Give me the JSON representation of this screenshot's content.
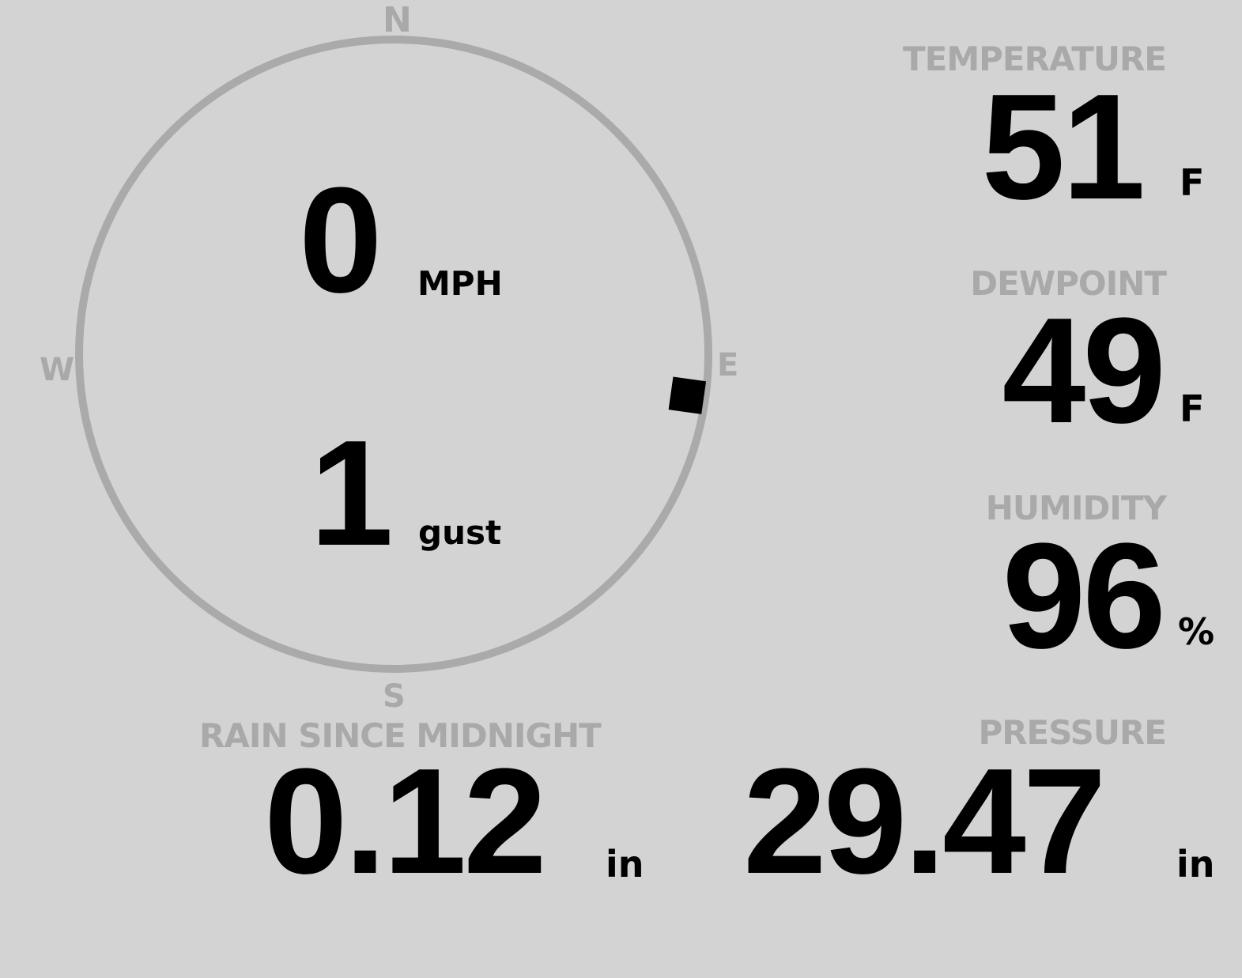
{
  "wind": {
    "speed": "0",
    "speed_unit": "MPH",
    "gust": "1",
    "gust_unit": "gust",
    "direction_degrees": 98,
    "cardinals": {
      "n": "N",
      "e": "E",
      "s": "S",
      "w": "W"
    }
  },
  "temperature": {
    "label": "TEMPERATURE",
    "value": "51",
    "unit": "F"
  },
  "dewpoint": {
    "label": "DEWPOINT",
    "value": "49",
    "unit": "F"
  },
  "humidity": {
    "label": "HUMIDITY",
    "value": "96",
    "unit": "%"
  },
  "rain": {
    "label": "RAIN SINCE MIDNIGHT",
    "value": "0.12",
    "unit": "in"
  },
  "pressure": {
    "label": "PRESSURE",
    "value": "29.47",
    "unit": "in"
  },
  "colors": {
    "background": "#d3d3d3",
    "label": "#a9a9a9",
    "value": "#000000"
  }
}
